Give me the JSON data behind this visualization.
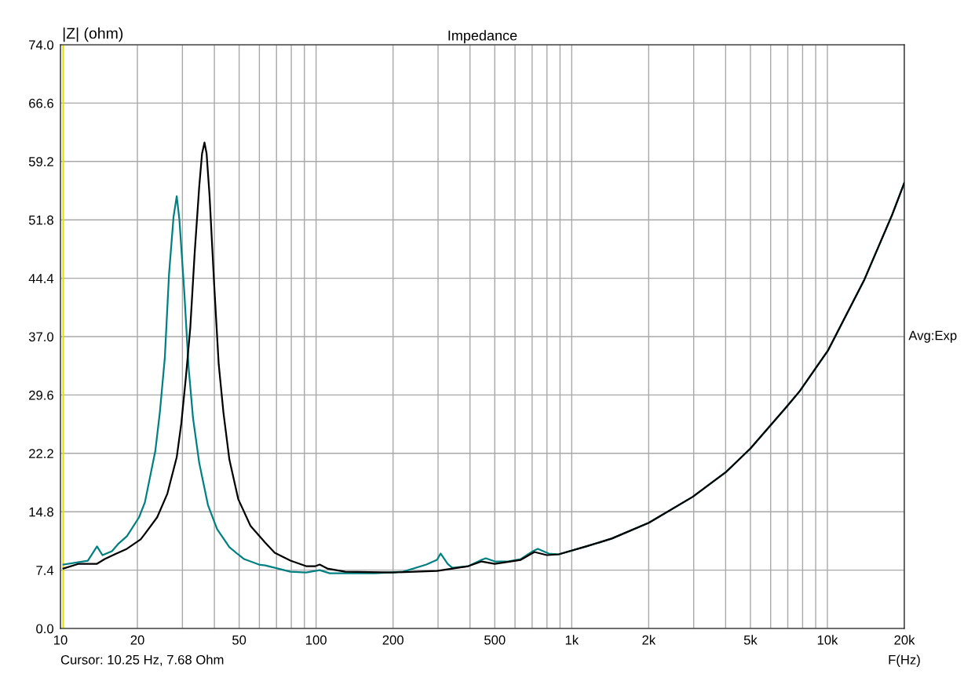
{
  "chart_data": {
    "type": "line",
    "title": "Impedance",
    "ylabel": "|Z| (ohm)",
    "xlabel": "F(Hz)",
    "log": "x",
    "grid": true,
    "legend": false,
    "marker": "none",
    "line_style": "solid",
    "xlim": [
      10,
      20000
    ],
    "ylim": [
      0,
      74
    ],
    "xticks": [
      10,
      20,
      {
        "value": 30,
        "label": null
      },
      {
        "value": 40,
        "label": null
      },
      50,
      {
        "value": 60,
        "label": null
      },
      {
        "value": 70,
        "label": null
      },
      {
        "value": 80,
        "label": null
      },
      {
        "value": 90,
        "label": null
      },
      100,
      200,
      {
        "value": 300,
        "label": null
      },
      {
        "value": 400,
        "label": null
      },
      500,
      {
        "value": 600,
        "label": null
      },
      {
        "value": 700,
        "label": null
      },
      {
        "value": 800,
        "label": null
      },
      {
        "value": 900,
        "label": null
      },
      {
        "value": 1000,
        "label": "1k"
      },
      {
        "value": 2000,
        "label": "2k"
      },
      {
        "value": 3000,
        "label": null
      },
      {
        "value": 4000,
        "label": null
      },
      {
        "value": 5000,
        "label": "5k"
      },
      {
        "value": 6000,
        "label": null
      },
      {
        "value": 7000,
        "label": null
      },
      {
        "value": 8000,
        "label": null
      },
      {
        "value": 9000,
        "label": null
      },
      {
        "value": 10000,
        "label": "10k"
      },
      {
        "value": 20000,
        "label": "20k"
      }
    ],
    "yticks": [
      {
        "value": 0,
        "label": "0.0"
      },
      7.4,
      14.8,
      22.2,
      29.6,
      {
        "value": 37,
        "label": "37.0"
      },
      44.4,
      51.8,
      59.2,
      66.6,
      {
        "value": 74,
        "label": "74.0"
      }
    ],
    "ref_lines": [
      {
        "axis": "x",
        "value": 10.25,
        "color": "#e0e000"
      }
    ],
    "annotations": [
      "Cursor: 10.25 Hz, 7.68 Ohm",
      "Avg:Exp"
    ],
    "series": [
      {
        "color": "#008080",
        "x": [
          10.27,
          12.8,
          13.9,
          14.6,
          15.9,
          16.8,
          18.2,
          20.3,
          21.4,
          23.5,
          24.5,
          25.6,
          26.6,
          27.7,
          28.5,
          29.2,
          30.5,
          31.7,
          33.0,
          34.9,
          37.8,
          41.0,
          45.8,
          49.5,
          52.3,
          59.8,
          63.3,
          79.4,
          91.4,
          103.3,
          113,
          169,
          219,
          270,
          297,
          307,
          327,
          341,
          394,
          444,
          461,
          500,
          564,
          632,
          705,
          737,
          813,
          889,
          1139,
          1434,
          2003,
          2975,
          4000,
          4995,
          6882,
          7800,
          10080,
          13900,
          17900,
          20000
        ],
        "values": [
          8.1,
          8.6,
          10.4,
          9.3,
          9.8,
          10.7,
          11.7,
          14.1,
          16.0,
          22.5,
          27.5,
          34.3,
          45.0,
          52.2,
          54.8,
          51.8,
          42.7,
          33.2,
          26.7,
          21.0,
          15.6,
          12.6,
          10.3,
          9.4,
          8.8,
          8.1,
          8.0,
          7.2,
          7.1,
          7.4,
          7.0,
          7.0,
          7.2,
          8.1,
          8.7,
          9.5,
          8.2,
          7.7,
          7.9,
          8.7,
          8.9,
          8.5,
          8.5,
          8.8,
          9.8,
          10.1,
          9.5,
          9.4,
          10.4,
          11.4,
          13.4,
          16.7,
          19.8,
          22.8,
          28.0,
          30.1,
          35.3,
          44.1,
          52.4,
          56.5
        ]
      },
      {
        "color": "#000000",
        "x": [
          10.27,
          11.8,
          13.9,
          14.9,
          16.3,
          18.2,
          20.6,
          21.4,
          23.9,
          26.2,
          28.5,
          29.7,
          30.9,
          32.2,
          33.5,
          34.9,
          35.8,
          36.6,
          37.3,
          38.3,
          39.9,
          41.6,
          43.4,
          45.8,
          49.6,
          55.4,
          63.2,
          68.9,
          79.4,
          91.4,
          99.5,
          103.3,
          110.6,
          130,
          199,
          297,
          394,
          444,
          500,
          632,
          714,
          800,
          889,
          1139,
          1434,
          2003,
          2975,
          4000,
          4995,
          6882,
          7800,
          10080,
          13900,
          17900,
          20000
        ],
        "values": [
          7.6,
          8.2,
          8.2,
          8.8,
          9.4,
          10.1,
          11.3,
          12.0,
          14.1,
          17.1,
          21.7,
          26.0,
          31.6,
          38.1,
          47.6,
          56.0,
          60.2,
          61.6,
          60.2,
          54.9,
          43.8,
          33.5,
          27.4,
          21.4,
          16.4,
          13.0,
          10.9,
          9.6,
          8.6,
          7.9,
          7.9,
          8.1,
          7.6,
          7.2,
          7.1,
          7.3,
          7.9,
          8.5,
          8.2,
          8.7,
          9.7,
          9.3,
          9.4,
          10.4,
          11.4,
          13.4,
          16.7,
          19.8,
          22.8,
          28.0,
          30.1,
          35.3,
          44.1,
          52.4,
          56.5
        ]
      }
    ]
  }
}
